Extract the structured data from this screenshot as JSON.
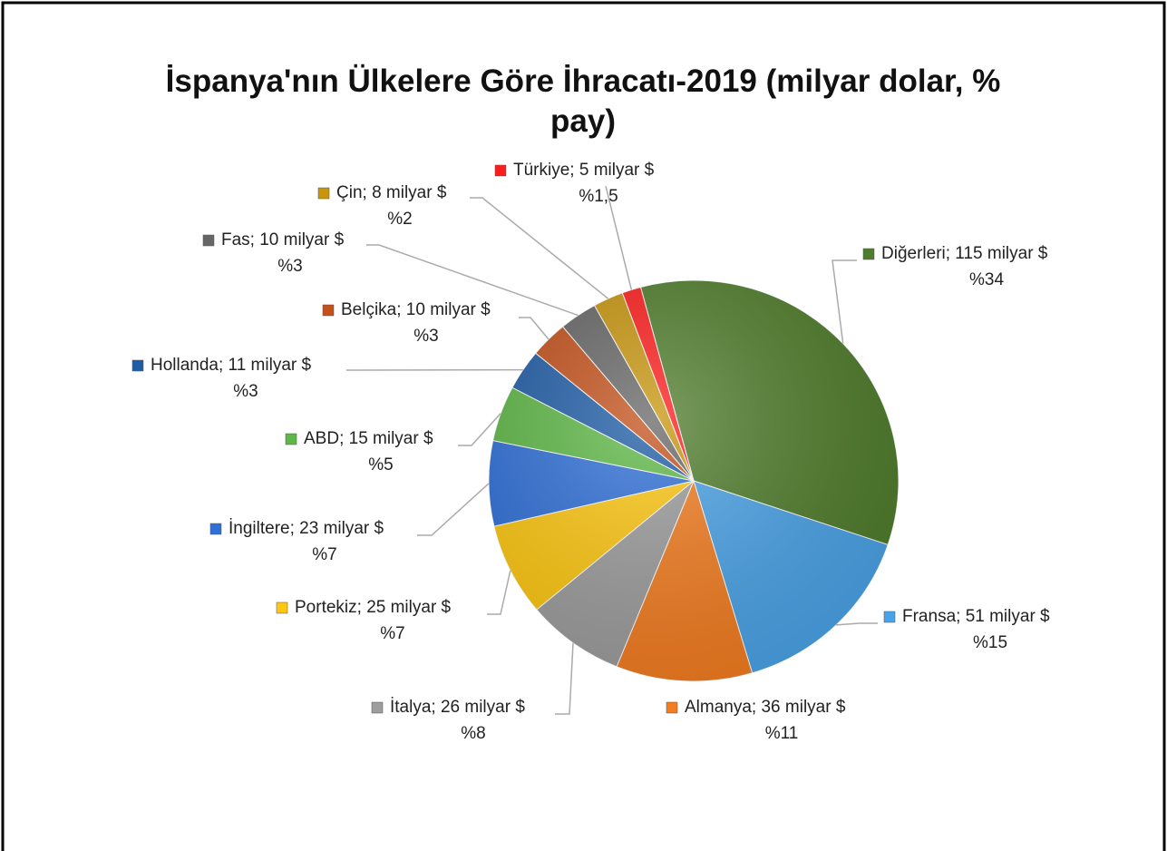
{
  "chart_data": {
    "type": "pie",
    "title": "İspanya'nın Ülkelere Göre İhracatı-2019 (milyar dolar, % pay)",
    "values": [
      115,
      51,
      36,
      26,
      25,
      23,
      15,
      11,
      10,
      10,
      8,
      5
    ],
    "value_labels": [
      "Diğerleri; 115 milyar $",
      "Fransa; 51 milyar $",
      "Almanya; 36 milyar $",
      "İtalya; 26 milyar $",
      "Portekiz; 25 milyar $",
      "İngiltere; 23 milyar $",
      "ABD; 15 milyar $",
      "Hollanda; 11 milyar $",
      "Belçika; 10 milyar $",
      "Fas; 10 milyar $",
      "Çin; 8 milyar $",
      "Türkiye; 5 milyar $"
    ],
    "shares": [
      34,
      15,
      11,
      8,
      7,
      7,
      5,
      3,
      3,
      3,
      2,
      1.5
    ],
    "share_labels": [
      "%34",
      "%15",
      "%11",
      "%8",
      "%7",
      "%7",
      "%5",
      "%3",
      "%3",
      "%3",
      "%2",
      "%1,5"
    ],
    "colors": [
      "#4f7d2b",
      "#4aa3e8",
      "#f47d20",
      "#9d9d9d",
      "#ffc810",
      "#2e6fd8",
      "#5db845",
      "#1e5ca6",
      "#c4501a",
      "#666666",
      "#c8950c",
      "#ff1c1c"
    ]
  }
}
